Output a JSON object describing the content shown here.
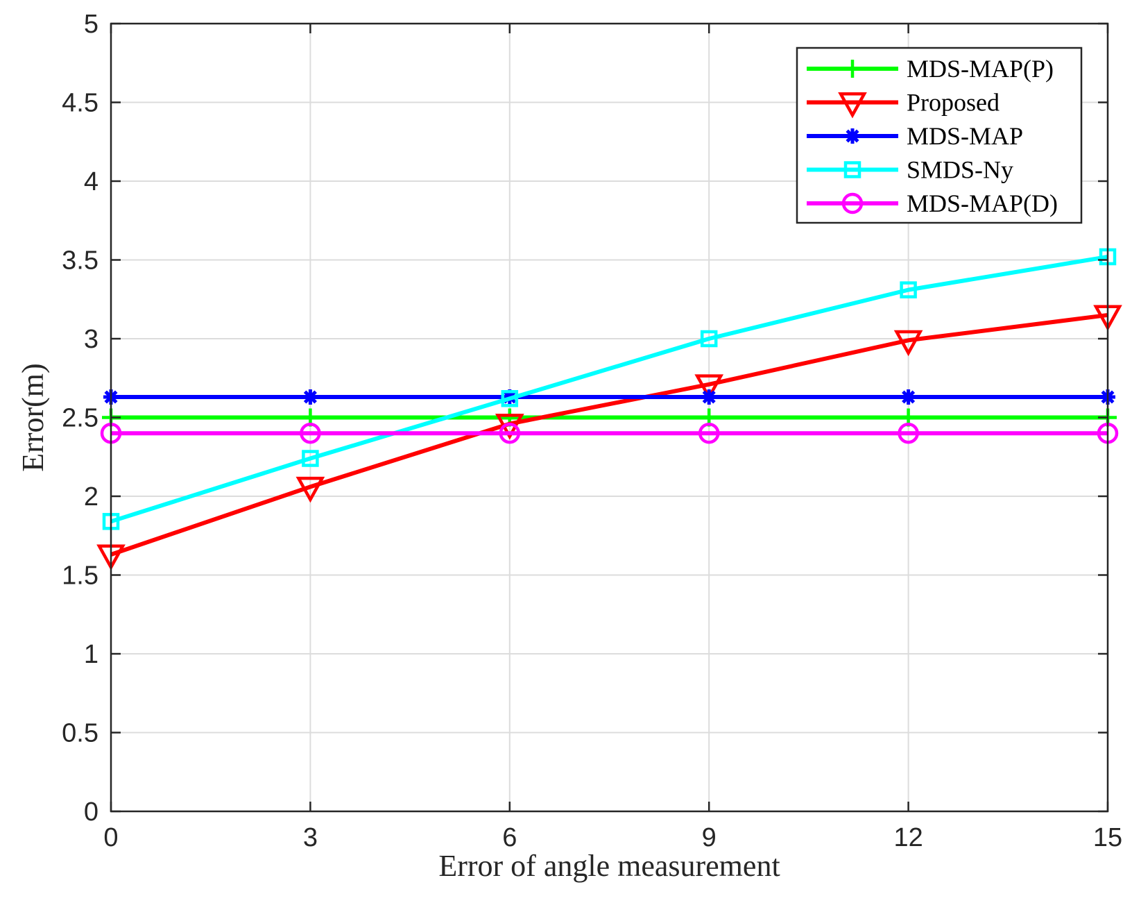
{
  "chart_data": {
    "type": "line",
    "title": "",
    "xlabel": "Error of angle measurement",
    "ylabel": "Error(m)",
    "x": [
      0,
      3,
      6,
      9,
      12,
      15
    ],
    "xlim": [
      0,
      15
    ],
    "ylim": [
      0,
      5
    ],
    "xticks": [
      0,
      3,
      6,
      9,
      12,
      15
    ],
    "xtick_labels": [
      "0",
      "3",
      "6",
      "9",
      "12",
      "15"
    ],
    "yticks": [
      0,
      0.5,
      1,
      1.5,
      2,
      2.5,
      3,
      3.5,
      4,
      4.5,
      5
    ],
    "ytick_labels": [
      "0",
      "0.5",
      "1",
      "1.5",
      "2",
      "2.5",
      "3",
      "3.5",
      "4",
      "4.5",
      "5"
    ],
    "grid": true,
    "legend_position": "top-right",
    "series": [
      {
        "name": "MDS-MAP(P)",
        "color": "#00ff00",
        "marker": "plus",
        "values": [
          2.5,
          2.5,
          2.5,
          2.5,
          2.5,
          2.5
        ]
      },
      {
        "name": "Proposed",
        "color": "#ff0000",
        "marker": "triangle-down",
        "values": [
          1.63,
          2.06,
          2.46,
          2.71,
          2.99,
          3.15
        ]
      },
      {
        "name": "MDS-MAP",
        "color": "#0000ff",
        "marker": "asterisk",
        "values": [
          2.63,
          2.63,
          2.63,
          2.63,
          2.63,
          2.63
        ]
      },
      {
        "name": "SMDS-Ny",
        "color": "#00ffff",
        "marker": "square",
        "values": [
          1.84,
          2.24,
          2.62,
          3.0,
          3.31,
          3.52
        ]
      },
      {
        "name": "MDS-MAP(D)",
        "color": "#ff00ff",
        "marker": "circle",
        "values": [
          2.4,
          2.4,
          2.4,
          2.4,
          2.4,
          2.4
        ]
      }
    ]
  }
}
